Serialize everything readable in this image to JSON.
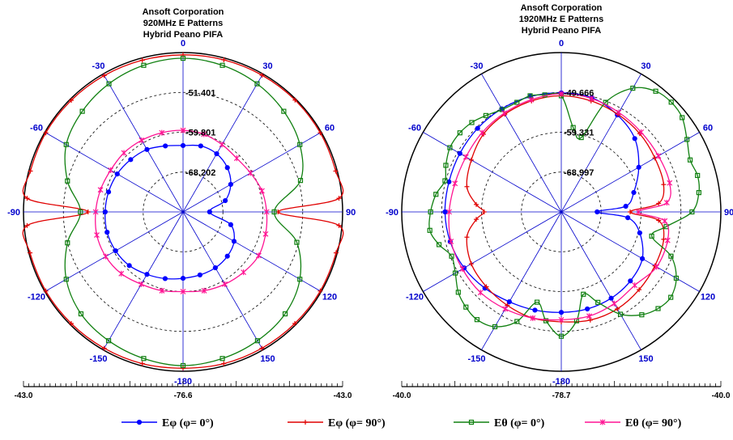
{
  "colors": {
    "e_phi_0": "#0000ff",
    "e_phi_90": "#e00000",
    "e_theta_0": "#108010",
    "e_theta_90": "#ff1493",
    "axis": "#0000cc"
  },
  "legend": [
    {
      "label": "Eφ (φ= 0°)",
      "color": "#0000ff",
      "marker": "circle"
    },
    {
      "label": "Eφ (φ= 90°)",
      "color": "#e00000",
      "marker": "plus"
    },
    {
      "label": "Eθ (φ= 0°)",
      "color": "#108010",
      "marker": "square"
    },
    {
      "label": "Eθ (φ= 90°)",
      "color": "#ff1493",
      "marker": "star"
    }
  ],
  "chart_data": [
    {
      "type": "polar",
      "title": "Ansoft Corporation",
      "subtitle": "920MHz E Patterns",
      "subtitle2": "Hybrid Peano PIFA",
      "angle_labels": [
        "0",
        "30",
        "60",
        "90",
        "120",
        "150",
        "-180",
        "-150",
        "-120",
        "-90",
        "-60",
        "-30"
      ],
      "radial_labels": [
        "-51.401",
        "-59.801",
        "-68.202"
      ],
      "scale": {
        "left": "-43.0",
        "center": "-76.6",
        "right": "-43.0"
      },
      "r_range": [
        -85.0,
        -43.0
      ],
      "series": [
        {
          "name": "Eφ (φ= 0°)",
          "key": "e_phi_0",
          "marker": "circle",
          "theta": [
            0,
            15,
            30,
            45,
            60,
            75,
            90,
            105,
            120,
            135,
            150,
            165,
            180,
            195,
            210,
            225,
            240,
            255,
            270,
            285,
            300,
            315,
            330,
            345
          ],
          "r": [
            -67.5,
            -67.0,
            -67.3,
            -68.5,
            -70.5,
            -73.5,
            -78.0,
            -72.0,
            -69.5,
            -68.5,
            -68.0,
            -67.8,
            -67.5,
            -66.8,
            -66.0,
            -65.0,
            -64.5,
            -64.3,
            -64.5,
            -64.7,
            -65.0,
            -65.5,
            -66.0,
            -67.0
          ]
        },
        {
          "name": "Eφ (φ= 90°)",
          "key": "e_phi_90",
          "marker": "plus",
          "theta": [
            0,
            15,
            30,
            45,
            60,
            75,
            85,
            90,
            95,
            105,
            120,
            135,
            150,
            165,
            180,
            195,
            210,
            225,
            240,
            255,
            265,
            270,
            275,
            285,
            300,
            315,
            330,
            345
          ],
          "r": [
            -43.6,
            -43.5,
            -43.4,
            -43.3,
            -43.3,
            -43.4,
            -43.8,
            -60.0,
            -43.8,
            -43.3,
            -43.3,
            -43.4,
            -43.5,
            -43.6,
            -43.8,
            -43.6,
            -43.5,
            -43.4,
            -43.3,
            -43.3,
            -43.8,
            -60.0,
            -43.8,
            -43.4,
            -43.3,
            -43.4,
            -43.5,
            -43.6
          ]
        },
        {
          "name": "Eθ (φ= 0°)",
          "key": "e_theta_0",
          "marker": "square",
          "theta": [
            0,
            15,
            30,
            45,
            60,
            75,
            90,
            105,
            120,
            135,
            150,
            165,
            180,
            195,
            210,
            225,
            240,
            255,
            270,
            285,
            300,
            315,
            330,
            345
          ],
          "r": [
            -44.5,
            -45.0,
            -46.0,
            -47.5,
            -49.5,
            -53.0,
            -61.0,
            -54.0,
            -49.5,
            -47.0,
            -45.8,
            -45.0,
            -44.5,
            -45.0,
            -45.8,
            -47.0,
            -49.5,
            -53.5,
            -58.0,
            -53.5,
            -49.5,
            -47.5,
            -46.0,
            -45.0
          ]
        },
        {
          "name": "Eθ (φ= 90°)",
          "key": "e_theta_90",
          "marker": "star",
          "theta": [
            0,
            15,
            30,
            45,
            60,
            75,
            90,
            105,
            120,
            135,
            150,
            165,
            180,
            195,
            210,
            225,
            240,
            255,
            270,
            285,
            300,
            315,
            330,
            345
          ],
          "r": [
            -63.5,
            -63.8,
            -64.5,
            -65.0,
            -64.5,
            -63.5,
            -63.0,
            -62.5,
            -62.0,
            -62.5,
            -63.0,
            -63.5,
            -64.0,
            -63.5,
            -63.0,
            -62.0,
            -61.5,
            -61.5,
            -62.0,
            -62.5,
            -63.0,
            -63.0,
            -63.2,
            -63.4
          ]
        }
      ]
    },
    {
      "type": "polar",
      "title": "Ansoft Corporation",
      "subtitle": "1920MHz E Patterns",
      "subtitle2": "Hybrid Peano PIFA",
      "angle_labels": [
        "0",
        "30",
        "60",
        "90",
        "120",
        "150",
        "-180",
        "-150",
        "-120",
        "-90",
        "-60",
        "-30"
      ],
      "radial_labels": [
        "-49.666",
        "-59.331",
        "-68.997"
      ],
      "scale": {
        "left": "-40.0",
        "center": "-78.7",
        "right": "-40.0"
      },
      "r_range": [
        -78.7,
        -40.0
      ],
      "series": [
        {
          "name": "Eφ (φ= 0°)",
          "key": "e_phi_0",
          "marker": "circle",
          "theta": [
            0,
            15,
            30,
            45,
            60,
            75,
            85,
            90,
            95,
            105,
            120,
            135,
            150,
            165,
            180,
            195,
            210,
            225,
            240,
            255,
            270,
            285,
            300,
            315,
            330,
            345
          ],
          "r": [
            -49.8,
            -50.0,
            -51.5,
            -53.5,
            -57.0,
            -60.5,
            -63.0,
            -70.0,
            -62.5,
            -59.0,
            -56.0,
            -55.0,
            -54.5,
            -54.3,
            -54.3,
            -54.0,
            -53.5,
            -52.5,
            -51.5,
            -50.8,
            -50.5,
            -50.5,
            -50.3,
            -50.0,
            -49.8,
            -49.7
          ]
        },
        {
          "name": "Eφ (φ= 90°)",
          "key": "e_phi_90",
          "marker": "plus",
          "theta": [
            0,
            15,
            30,
            45,
            60,
            75,
            85,
            90,
            95,
            105,
            120,
            135,
            150,
            165,
            180,
            195,
            210,
            225,
            240,
            255,
            265,
            270,
            275,
            285,
            300,
            315,
            330,
            345
          ],
          "r": [
            -50.5,
            -50.8,
            -51.3,
            -51.8,
            -52.5,
            -53.0,
            -55.0,
            -62.0,
            -55.0,
            -53.0,
            -52.5,
            -52.0,
            -51.5,
            -51.5,
            -52.0,
            -52.0,
            -52.5,
            -53.0,
            -53.5,
            -55.0,
            -58.0,
            -60.0,
            -58.0,
            -55.0,
            -53.5,
            -52.0,
            -51.3,
            -50.8
          ]
        },
        {
          "name": "Eθ (φ= 0°)",
          "key": "e_theta_0",
          "marker": "square",
          "theta": [
            0,
            8,
            15,
            22,
            30,
            38,
            45,
            52,
            60,
            68,
            75,
            82,
            90,
            98,
            105,
            112,
            120,
            128,
            135,
            142,
            150,
            158,
            165,
            172,
            180,
            188,
            195,
            202,
            210,
            218,
            225,
            232,
            240,
            248,
            255,
            262,
            270,
            278,
            285,
            292,
            300,
            308,
            315,
            322,
            330,
            338,
            345,
            352
          ],
          "r": [
            -50.5,
            -58.0,
            -60.0,
            -50.0,
            -44.0,
            -41.5,
            -41.0,
            -41.5,
            -43.5,
            -45.0,
            -44.5,
            -45.0,
            -47.0,
            -53.0,
            -56.0,
            -50.0,
            -46.5,
            -45.0,
            -45.5,
            -47.0,
            -50.0,
            -55.0,
            -58.0,
            -52.0,
            -48.5,
            -52.0,
            -56.0,
            -50.0,
            -46.5,
            -45.5,
            -46.0,
            -47.0,
            -49.0,
            -50.0,
            -48.0,
            -46.5,
            -47.0,
            -48.0,
            -49.5,
            -48.5,
            -47.5,
            -47.5,
            -48.0,
            -49.0,
            -50.0,
            -50.0,
            -49.5,
            -50.0
          ]
        },
        {
          "name": "Eθ (φ= 90°)",
          "key": "e_theta_90",
          "marker": "star",
          "theta": [
            0,
            15,
            30,
            45,
            60,
            75,
            85,
            90,
            95,
            105,
            120,
            135,
            150,
            165,
            180,
            195,
            210,
            225,
            240,
            255,
            270,
            285,
            300,
            315,
            330,
            345
          ],
          "r": [
            -50.0,
            -50.2,
            -50.8,
            -51.3,
            -51.5,
            -51.5,
            -53.0,
            -60.0,
            -53.5,
            -52.0,
            -52.0,
            -53.5,
            -53.0,
            -52.5,
            -52.5,
            -52.0,
            -51.5,
            -51.0,
            -51.0,
            -51.0,
            -51.5,
            -52.0,
            -52.0,
            -51.5,
            -51.0,
            -50.5
          ]
        }
      ]
    }
  ]
}
